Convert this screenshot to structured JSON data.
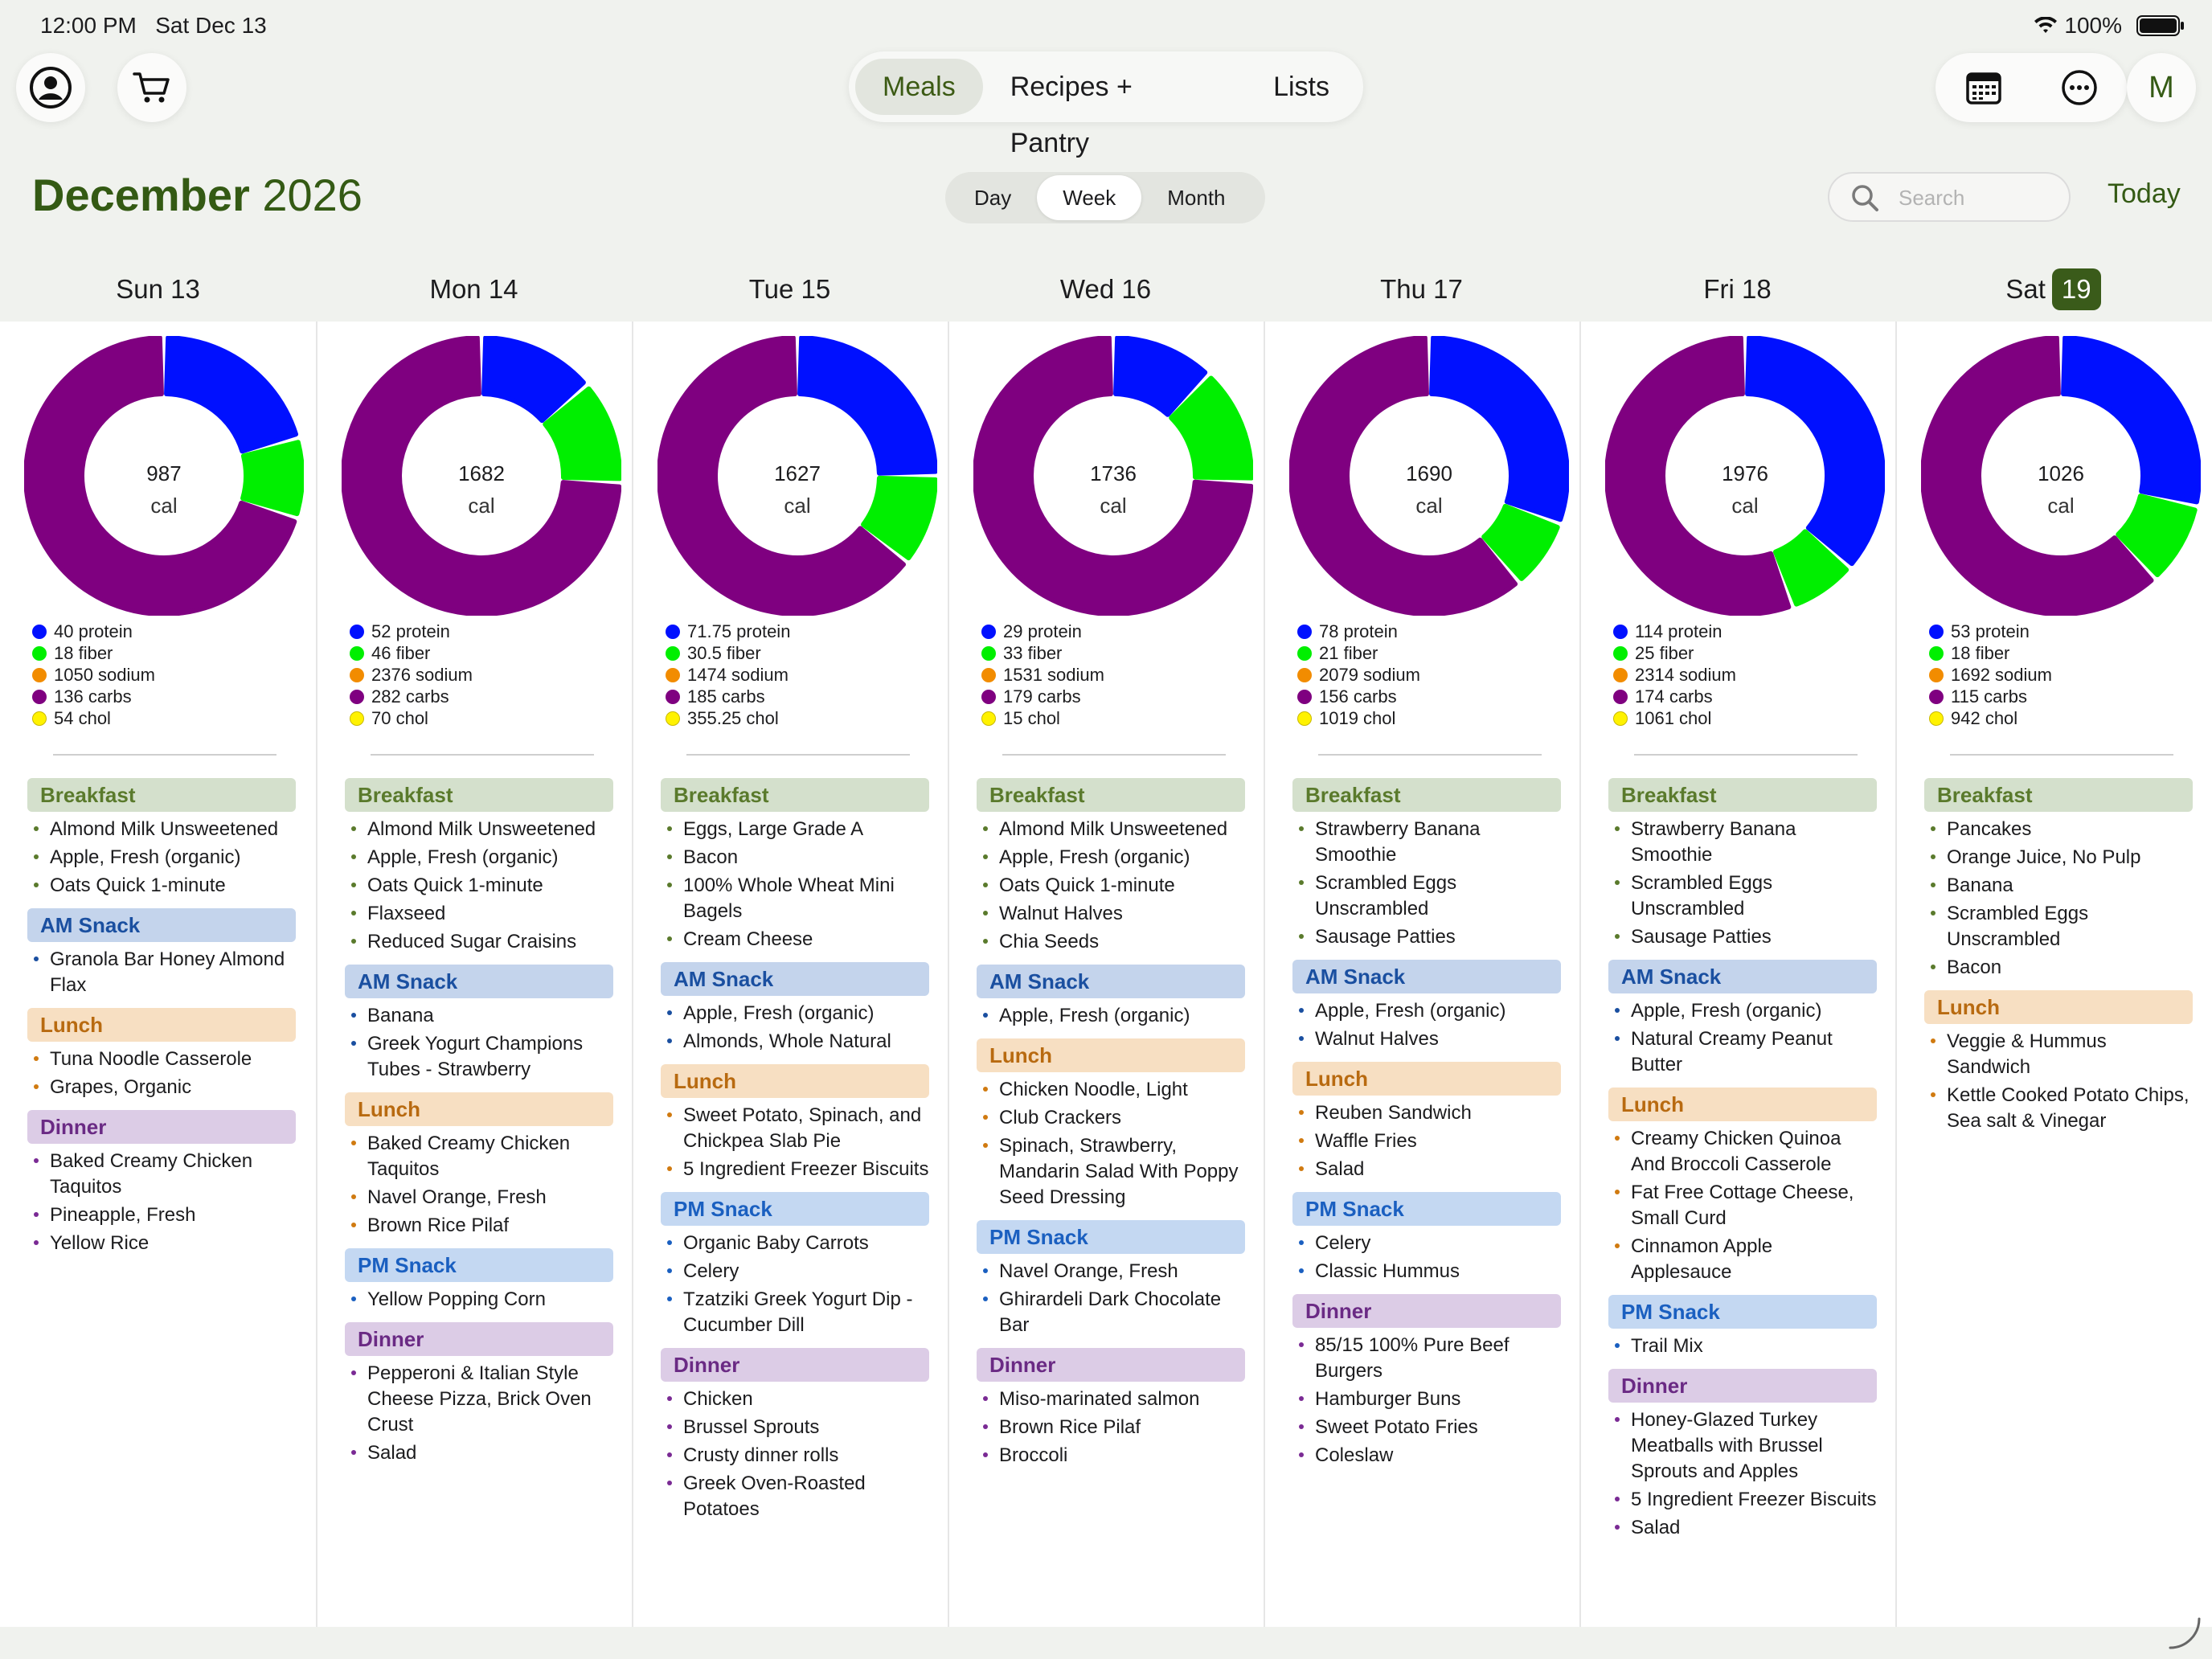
{
  "status": {
    "time": "12:00 PM",
    "date": "Sat Dec 13",
    "battery": "100%"
  },
  "top_tabs": [
    "Meals",
    "Recipes + Pantry",
    "Lists"
  ],
  "right_avatar": "M",
  "header": {
    "month": "December",
    "year": "2026"
  },
  "view_tabs": [
    "Day",
    "Week",
    "Month"
  ],
  "search": {
    "placeholder": "Search"
  },
  "today_label": "Today",
  "colors": {
    "protein": "#0010ff",
    "fiber": "#00ef00",
    "sodium": "#f28c00",
    "carbs": "#7f0080",
    "chol": "#fff200",
    "accent": "#345a14"
  },
  "days": [
    {
      "label": "Sun 13",
      "cal": "987",
      "unit": "cal",
      "macros": {
        "protein": 40,
        "fiber": 18,
        "carbs": 136
      },
      "nutrients": [
        "40 protein",
        "18 fiber",
        "1050 sodium",
        "136 carbs",
        "54 chol"
      ],
      "meals": [
        {
          "type": "Breakfast",
          "items": [
            "Almond Milk Unsweetened",
            "Apple, Fresh (organic)",
            "Oats Quick 1-minute"
          ]
        },
        {
          "type": "AM Snack",
          "items": [
            "Granola Bar Honey Almond Flax"
          ]
        },
        {
          "type": "Lunch",
          "items": [
            "Tuna Noodle Casserole",
            "Grapes, Organic"
          ]
        },
        {
          "type": "Dinner",
          "items": [
            "Baked Creamy Chicken Taquitos",
            "Pineapple, Fresh",
            "Yellow Rice"
          ]
        }
      ]
    },
    {
      "label": "Mon 14",
      "cal": "1682",
      "unit": "cal",
      "macros": {
        "protein": 52,
        "fiber": 46,
        "carbs": 282
      },
      "nutrients": [
        "52 protein",
        "46 fiber",
        "2376 sodium",
        "282 carbs",
        "70 chol"
      ],
      "meals": [
        {
          "type": "Breakfast",
          "items": [
            "Almond Milk Unsweetened",
            "Apple, Fresh (organic)",
            "Oats Quick 1-minute",
            "Flaxseed",
            "Reduced Sugar Craisins"
          ]
        },
        {
          "type": "AM Snack",
          "items": [
            "Banana",
            "Greek Yogurt Champions Tubes - Strawberry"
          ]
        },
        {
          "type": "Lunch",
          "items": [
            "Baked Creamy Chicken Taquitos",
            "Navel Orange, Fresh",
            "Brown Rice Pilaf"
          ]
        },
        {
          "type": "PM Snack",
          "items": [
            "Yellow Popping Corn"
          ]
        },
        {
          "type": "Dinner",
          "items": [
            "Pepperoni & Italian Style Cheese Pizza, Brick Oven Crust",
            "Salad"
          ]
        }
      ]
    },
    {
      "label": "Tue 15",
      "cal": "1627",
      "unit": "cal",
      "macros": {
        "protein": 71.75,
        "fiber": 30.5,
        "carbs": 185
      },
      "nutrients": [
        "71.75 protein",
        "30.5 fiber",
        "1474 sodium",
        "185 carbs",
        "355.25 chol"
      ],
      "meals": [
        {
          "type": "Breakfast",
          "items": [
            "Eggs, Large Grade A",
            "Bacon",
            "100% Whole Wheat Mini Bagels",
            "Cream Cheese"
          ]
        },
        {
          "type": "AM Snack",
          "items": [
            "Apple, Fresh (organic)",
            "Almonds, Whole Natural"
          ]
        },
        {
          "type": "Lunch",
          "items": [
            "Sweet Potato, Spinach, and Chickpea Slab Pie",
            "5 Ingredient Freezer Biscuits"
          ]
        },
        {
          "type": "PM Snack",
          "items": [
            "Organic Baby Carrots",
            "Celery",
            "Tzatziki Greek Yogurt Dip - Cucumber Dill"
          ]
        },
        {
          "type": "Dinner",
          "items": [
            "Chicken",
            "Brussel Sprouts",
            "Crusty dinner rolls",
            "Greek Oven-Roasted Potatoes"
          ]
        }
      ]
    },
    {
      "label": "Wed 16",
      "cal": "1736",
      "unit": "cal",
      "macros": {
        "protein": 29,
        "fiber": 33,
        "carbs": 179
      },
      "nutrients": [
        "29 protein",
        "33 fiber",
        "1531 sodium",
        "179 carbs",
        "15 chol"
      ],
      "meals": [
        {
          "type": "Breakfast",
          "items": [
            "Almond Milk Unsweetened",
            "Apple, Fresh (organic)",
            "Oats Quick 1-minute",
            "Walnut Halves",
            "Chia Seeds"
          ]
        },
        {
          "type": "AM Snack",
          "items": [
            "Apple, Fresh (organic)"
          ]
        },
        {
          "type": "Lunch",
          "items": [
            "Chicken Noodle, Light",
            "Club Crackers",
            "Spinach, Strawberry, Mandarin Salad With Poppy Seed Dressing"
          ]
        },
        {
          "type": "PM Snack",
          "items": [
            "Navel Orange, Fresh",
            "Ghirardeli Dark Chocolate Bar"
          ]
        },
        {
          "type": "Dinner",
          "items": [
            "Miso-marinated salmon",
            "Brown Rice Pilaf",
            "Broccoli"
          ]
        }
      ]
    },
    {
      "label": "Thu 17",
      "cal": "1690",
      "unit": "cal",
      "macros": {
        "protein": 78,
        "fiber": 21,
        "carbs": 156
      },
      "nutrients": [
        "78 protein",
        "21 fiber",
        "2079 sodium",
        "156 carbs",
        "1019 chol"
      ],
      "meals": [
        {
          "type": "Breakfast",
          "items": [
            "Strawberry Banana Smoothie",
            "Scrambled Eggs Unscrambled",
            "Sausage Patties"
          ]
        },
        {
          "type": "AM Snack",
          "items": [
            "Apple, Fresh (organic)",
            "Walnut Halves"
          ]
        },
        {
          "type": "Lunch",
          "items": [
            "Reuben Sandwich",
            "Waffle Fries",
            "Salad"
          ]
        },
        {
          "type": "PM Snack",
          "items": [
            "Celery",
            "Classic Hummus"
          ]
        },
        {
          "type": "Dinner",
          "items": [
            "85/15 100% Pure Beef Burgers",
            "Hamburger Buns",
            "Sweet Potato Fries",
            "Coleslaw"
          ]
        }
      ]
    },
    {
      "label": "Fri 18",
      "cal": "1976",
      "unit": "cal",
      "macros": {
        "protein": 114,
        "fiber": 25,
        "carbs": 174
      },
      "nutrients": [
        "114 protein",
        "25 fiber",
        "2314 sodium",
        "174 carbs",
        "1061 chol"
      ],
      "meals": [
        {
          "type": "Breakfast",
          "items": [
            "Strawberry Banana Smoothie",
            "Scrambled Eggs Unscrambled",
            "Sausage Patties"
          ]
        },
        {
          "type": "AM Snack",
          "items": [
            "Apple, Fresh (organic)",
            "Natural Creamy Peanut Butter"
          ]
        },
        {
          "type": "Lunch",
          "items": [
            "Creamy Chicken Quinoa And  Broccoli Casserole",
            "Fat Free Cottage Cheese, Small Curd",
            "Cinnamon Apple Applesauce"
          ]
        },
        {
          "type": "PM Snack",
          "items": [
            "Trail Mix"
          ]
        },
        {
          "type": "Dinner",
          "items": [
            "Honey-Glazed Turkey Meatballs with Brussel Sprouts and Apples",
            "5 Ingredient Freezer Biscuits",
            "Salad"
          ]
        }
      ]
    },
    {
      "label": "Sat",
      "badge": "19",
      "cal": "1026",
      "unit": "cal",
      "macros": {
        "protein": 53,
        "fiber": 18,
        "carbs": 115
      },
      "nutrients": [
        "53 protein",
        "18 fiber",
        "1692 sodium",
        "115 carbs",
        "942 chol"
      ],
      "meals": [
        {
          "type": "Breakfast",
          "items": [
            "Pancakes",
            "Orange Juice, No Pulp",
            "Banana",
            "Scrambled Eggs Unscrambled",
            "Bacon"
          ]
        },
        {
          "type": "Lunch",
          "items": [
            "Veggie & Hummus Sandwich",
            "Kettle Cooked Potato Chips, Sea salt & Vinegar"
          ]
        }
      ]
    }
  ]
}
